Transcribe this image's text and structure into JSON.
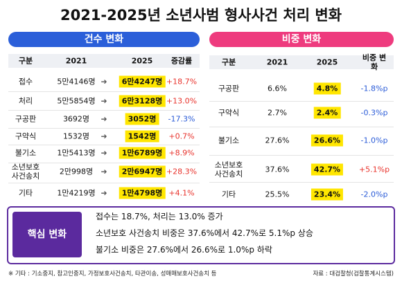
{
  "title": "2021-2025년 소년사범 형사사건 처리 변화",
  "left": {
    "header": "건수 변화",
    "columns": [
      "구분",
      "2021",
      "2025",
      "증감률"
    ],
    "rows": [
      [
        "접수",
        "5만4146명",
        "6만4247명",
        "+18.7%"
      ],
      [
        "처리",
        "5만5854명",
        "6만3128명",
        "+13.0%"
      ],
      [
        "구공판",
        "3692명",
        "3052명",
        "-17.3%"
      ],
      [
        "구약식",
        "1532명",
        "1542명",
        "+0.7%"
      ],
      [
        "불기소",
        "1만5413명",
        "1만6789명",
        "+8.9%"
      ],
      [
        "소년보호\n사건송치",
        "2만998명",
        "2만6947명",
        "+28.3%"
      ],
      [
        "기타",
        "1만4219명",
        "1만4798명",
        "+4.1%"
      ]
    ]
  },
  "right": {
    "header": "비중 변화",
    "columns": [
      "구분",
      "2021",
      "2025",
      "비중 변화"
    ],
    "rows": [
      [
        "구공판",
        "6.6%",
        "4.8%",
        "-1.8%p"
      ],
      [
        "구약식",
        "2.7%",
        "2.4%",
        "-0.3%p"
      ],
      [
        "불기소",
        "27.6%",
        "26.6%",
        "-1.0%p"
      ],
      [
        "소년보호\n사건송치",
        "37.6%",
        "42.7%",
        "+5.1%p"
      ],
      [
        "기타",
        "25.5%",
        "23.4%",
        "-2.0%p"
      ]
    ]
  },
  "key": {
    "label": "핵심 변화",
    "lines": [
      "접수는 18.7%, 처리는 13.0% 증가",
      "소년보호 사건송치 비중은 37.6%에서 42.7%로 5.1%p 상승",
      "불기소 비중은 27.6%에서 26.6%로 1.0%p 하락"
    ]
  },
  "footnote": "※ 기타 : 기소중지, 참고인중지, 가정보호사건송치, 타관이송, 성매매보호사건송치 등",
  "source": "자료 : 대검찰청(검찰통계시스템)"
}
